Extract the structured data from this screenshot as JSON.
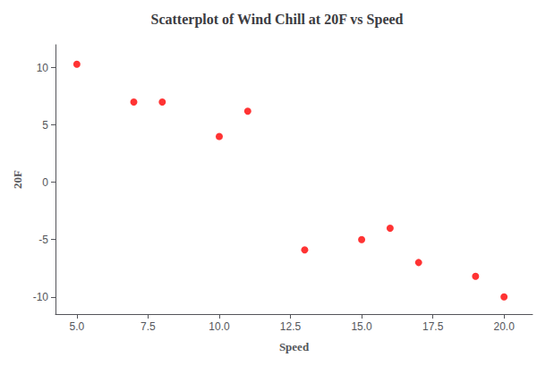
{
  "chart_data": {
    "type": "scatter",
    "title": "Scatterplot of Wind Chill at 20F vs Speed",
    "xlabel": "Speed",
    "ylabel": "20F",
    "x": [
      5,
      7,
      8,
      10,
      11,
      13,
      15,
      16,
      17,
      19,
      20
    ],
    "values": [
      10.3,
      7.0,
      7.0,
      4.0,
      6.2,
      -5.9,
      -5.0,
      -4.0,
      -7.0,
      -8.2,
      -10.0
    ],
    "color": "#FF0000",
    "xlim": [
      4.25,
      21.0
    ],
    "ylim": [
      -11.5,
      12.0
    ],
    "xticks": [
      {
        "value": 5,
        "label": "5.0"
      },
      7.5,
      {
        "value": 10,
        "label": "10.0"
      },
      12.5,
      {
        "value": 15,
        "label": "15.0"
      },
      17.5,
      {
        "value": 20,
        "label": "20.0"
      }
    ],
    "yticks": [
      -10,
      -5,
      0,
      5,
      10
    ],
    "grid": false
  }
}
